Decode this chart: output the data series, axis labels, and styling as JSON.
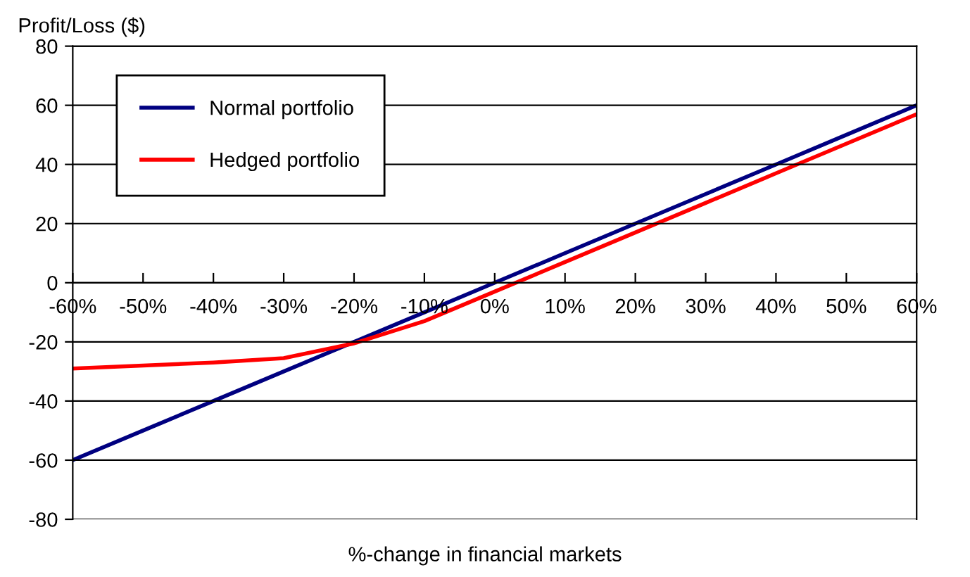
{
  "chart_data": {
    "type": "line",
    "ylabel": "Profit/Loss ($)",
    "xlabel": "%-change in financial markets",
    "x": [
      -60,
      -50,
      -40,
      -30,
      -20,
      -10,
      0,
      10,
      20,
      30,
      40,
      50,
      60
    ],
    "series": [
      {
        "name": "Normal portfolio",
        "color": "#000080",
        "values": [
          -60,
          -50,
          -40,
          -30,
          -20,
          -10,
          0,
          10,
          20,
          30,
          40,
          50,
          60
        ]
      },
      {
        "name": "Hedged portfolio",
        "color": "#ff0000",
        "values": [
          -29,
          -28,
          -27,
          -25.5,
          -20.5,
          -13,
          -3,
          7,
          17,
          27,
          37,
          47,
          57
        ]
      }
    ],
    "xlim": [
      -60,
      60
    ],
    "ylim": [
      -80,
      80
    ],
    "xticks": [
      {
        "value": -60,
        "label": "-60%"
      },
      {
        "value": -50,
        "label": "-50%"
      },
      {
        "value": -40,
        "label": "-40%"
      },
      {
        "value": -30,
        "label": "-30%"
      },
      {
        "value": -20,
        "label": "-20%"
      },
      {
        "value": -10,
        "label": "-10%"
      },
      {
        "value": 0,
        "label": "0%"
      },
      {
        "value": 10,
        "label": "10%"
      },
      {
        "value": 20,
        "label": "20%"
      },
      {
        "value": 30,
        "label": "30%"
      },
      {
        "value": 40,
        "label": "40%"
      },
      {
        "value": 50,
        "label": "50%"
      },
      {
        "value": 60,
        "label": "60%"
      }
    ],
    "yticks": [
      -80,
      -60,
      -40,
      -20,
      0,
      20,
      40,
      60,
      80
    ],
    "grid": "y",
    "legend": "top left",
    "line_style": "solid",
    "marker": "none"
  }
}
